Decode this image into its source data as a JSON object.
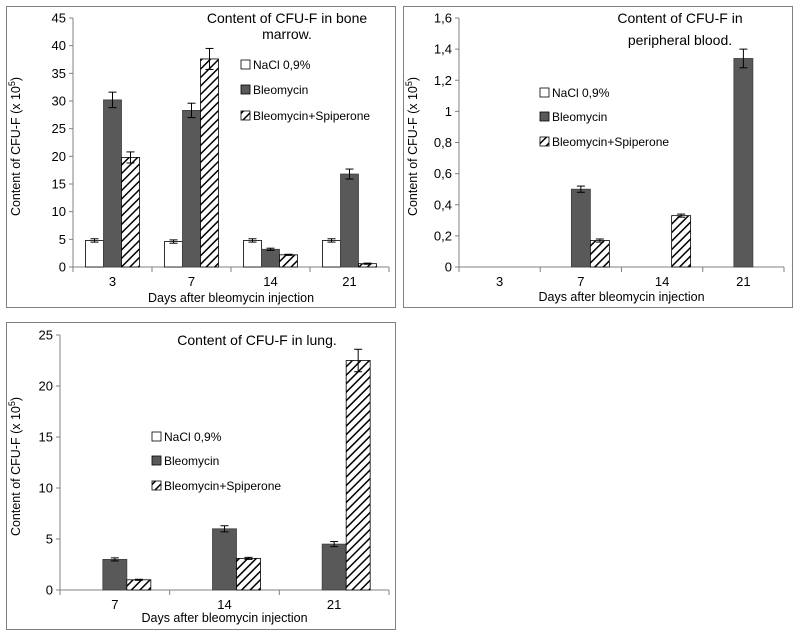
{
  "hatch_color": "#000000",
  "chart_data": [
    {
      "type": "bar",
      "title_lines": [
        "Content of CFU-F in bone",
        "marrow."
      ],
      "xlabel": "Days after bleomycin injection",
      "ylabel": "Content of CFU-F (x 10",
      "ylabel_sup": "5",
      "ylabel_end": ")",
      "categories": [
        "3",
        "7",
        "14",
        "21"
      ],
      "ylim": [
        0,
        45
      ],
      "yticks": [
        "0",
        "5",
        "10",
        "15",
        "20",
        "25",
        "30",
        "35",
        "40",
        "45"
      ],
      "legend_position": "top-right",
      "series": [
        {
          "name": "NaCl 0,9%",
          "fill": "white",
          "values": [
            4.8,
            4.6,
            4.8,
            4.8
          ],
          "errors": [
            0.3,
            0.3,
            0.3,
            0.3
          ]
        },
        {
          "name": "Bleomycin",
          "fill": "dark",
          "values": [
            30.2,
            28.3,
            3.2,
            16.8
          ],
          "errors": [
            1.4,
            1.3,
            0.2,
            0.9
          ]
        },
        {
          "name": "Bleomycin+Spiperone",
          "fill": "hatch",
          "values": [
            19.8,
            37.6,
            2.2,
            0.6
          ],
          "errors": [
            1.0,
            1.9,
            0.1,
            0.1
          ]
        }
      ]
    },
    {
      "type": "bar",
      "title_lines": [
        "Content of CFU-F in",
        "peripheral blood."
      ],
      "xlabel": "Days after bleomycin injection",
      "ylabel": "Content of CFU-F (x 10",
      "ylabel_sup": "5",
      "ylabel_end": ")",
      "categories": [
        "3",
        "7",
        "14",
        "21"
      ],
      "ylim": [
        0,
        1.6
      ],
      "yticks": [
        "0",
        "0,2",
        "0,4",
        "0,6",
        "0,8",
        "1",
        "1,2",
        "1,4",
        "1,6"
      ],
      "legend_position": "center",
      "series": [
        {
          "name": "NaCl 0,9%",
          "fill": "white",
          "values": [
            0,
            0,
            0,
            0
          ],
          "errors": [
            0,
            0,
            0,
            0
          ]
        },
        {
          "name": "Bleomycin",
          "fill": "dark",
          "values": [
            0,
            0.5,
            0,
            1.34
          ],
          "errors": [
            0,
            0.02,
            0,
            0.06
          ]
        },
        {
          "name": "Bleomycin+Spiperone",
          "fill": "hatch",
          "values": [
            0,
            0.17,
            0.33,
            0
          ],
          "errors": [
            0,
            0.01,
            0.01,
            0
          ]
        }
      ]
    },
    {
      "type": "bar",
      "title_lines": [
        "Content of CFU-F in lung."
      ],
      "xlabel": "Days after bleomycin injection",
      "ylabel": "Content of CFU-F (x 10",
      "ylabel_sup": "5",
      "ylabel_end": ")",
      "categories": [
        "7",
        "14",
        "21"
      ],
      "ylim": [
        0,
        25
      ],
      "yticks": [
        "0",
        "5",
        "10",
        "15",
        "20",
        "25"
      ],
      "legend_position": "center-left",
      "series": [
        {
          "name": "NaCl 0,9%",
          "fill": "white",
          "values": [
            0,
            0,
            0
          ],
          "errors": [
            0,
            0,
            0
          ]
        },
        {
          "name": "Bleomycin",
          "fill": "dark",
          "values": [
            3.0,
            6.0,
            4.5
          ],
          "errors": [
            0.15,
            0.3,
            0.25
          ]
        },
        {
          "name": "Bleomycin+Spiperone",
          "fill": "hatch",
          "values": [
            1.0,
            3.1,
            22.5
          ],
          "errors": [
            0.05,
            0.1,
            1.1
          ]
        }
      ]
    }
  ]
}
